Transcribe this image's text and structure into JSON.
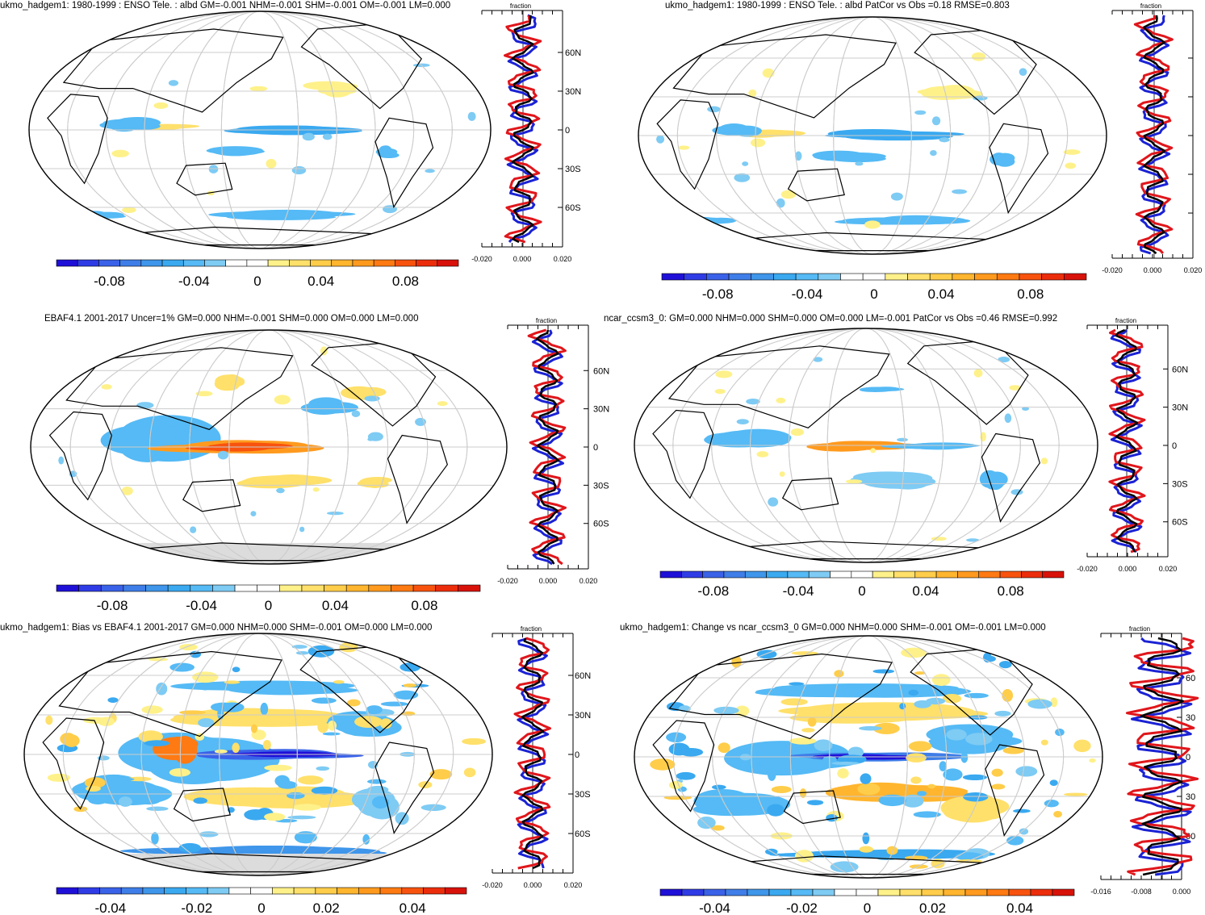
{
  "panels": [
    {
      "id": "top-left",
      "title": "ukmo_hadgem1: 1980-1999 : ENSO Tele. : albd GM=-0.001 NHM=-0.001 SHM=-0.001 OM=-0.001 LM=0.000",
      "has_missing_gray": false,
      "profile_lat_labels": [
        "60N",
        "30N",
        "0",
        "30S",
        "60S"
      ],
      "profile_x_labels": [
        "-0.020",
        "0.000",
        "0.020"
      ],
      "profile_header": "fraction",
      "colorbar_labels": [
        "-0.08",
        "-0.04",
        "0",
        "0.04",
        "0.08"
      ],
      "anomaly_pattern": "weak"
    },
    {
      "id": "top-right",
      "title": "ukmo_hadgem1: 1980-1999 : ENSO Tele. : albd PatCor vs Obs =0.18 RMSE=0.803",
      "has_missing_gray": false,
      "profile_lat_labels": [],
      "profile_x_labels": [
        "-0.020",
        "0.000",
        "0.020"
      ],
      "profile_header": "fraction",
      "colorbar_labels": [
        "-0.08",
        "-0.04",
        "0",
        "0.04",
        "0.08"
      ],
      "anomaly_pattern": "weak"
    },
    {
      "id": "middle-left",
      "title": "EBAF4.1 2001-2017 Uncer=1% GM=0.000 NHM=-0.001 SHM=0.000 OM=0.000 LM=0.000",
      "has_missing_gray": true,
      "profile_lat_labels": [
        "60N",
        "30N",
        "0",
        "30S",
        "60S"
      ],
      "profile_x_labels": [
        "-0.020",
        "0.000",
        "0.020"
      ],
      "profile_header": "fraction",
      "colorbar_labels": [
        "-0.08",
        "-0.04",
        "0",
        "0.04",
        "0.08"
      ],
      "anomaly_pattern": "obs"
    },
    {
      "id": "middle-right",
      "title": "ncar_ccsm3_0: GM=0.000 NHM=0.000 SHM=0.000 OM=0.000 LM=-0.001 PatCor vs Obs =0.46 RMSE=0.992",
      "has_missing_gray": false,
      "profile_lat_labels": [
        "60N",
        "30N",
        "0",
        "30S",
        "60S"
      ],
      "profile_x_labels": [
        "-0.020",
        "0.000",
        "0.020"
      ],
      "profile_header": "fraction",
      "colorbar_labels": [
        "-0.08",
        "-0.04",
        "0",
        "0.04",
        "0.08"
      ],
      "anomaly_pattern": "ccsm"
    },
    {
      "id": "bottom-left",
      "title": "ukmo_hadgem1: Bias vs EBAF4.1 2001-2017 GM=0.000 NHM=0.000 SHM=-0.001 OM=0.000 LM=0.000",
      "has_missing_gray": true,
      "profile_lat_labels": [
        "60N",
        "30N",
        "0",
        "30S",
        "60S"
      ],
      "profile_x_labels": [
        "-0.020",
        "0.000",
        "0.020"
      ],
      "profile_header": "fraction",
      "colorbar_labels": [
        "-0.04",
        "-0.02",
        "0",
        "0.02",
        "0.04"
      ],
      "anomaly_pattern": "bias"
    },
    {
      "id": "bottom-right",
      "title": "ukmo_hadgem1: Change vs ncar_ccsm3_0 GM=0.000 NHM=0.000 SHM=-0.001 OM=-0.001 LM=0.000",
      "has_missing_gray": false,
      "profile_lat_labels": [
        "60",
        "30",
        "0",
        "30",
        "60"
      ],
      "profile_x_labels": [
        "-0.016",
        "-0.008",
        "0.000"
      ],
      "profile_header": "fraction",
      "colorbar_labels": [
        "-0.04",
        "-0.02",
        "0",
        "0.02",
        "0.04"
      ],
      "anomaly_pattern": "change"
    }
  ],
  "colors": {
    "colorbar": [
      "#1f10d8",
      "#2f3ce6",
      "#3a62e8",
      "#3f7ee8",
      "#3f96ea",
      "#3aa9f0",
      "#55baf5",
      "#7ecbf4",
      "#ffffff",
      "#ffffff",
      "#fff18a",
      "#ffe06a",
      "#ffcd4a",
      "#ffb52e",
      "#ff9a1e",
      "#ff7a12",
      "#f8530e",
      "#ec2d0c",
      "#d8120a"
    ],
    "model_line": "#e0161b",
    "obs_line": "#1a22d4",
    "mean_line": "#000000",
    "grid": "#cccccc",
    "missing": "#dcdcdc"
  },
  "chart_data": [
    {
      "type": "heatmap",
      "title": "ukmo_hadgem1: 1980-1999 : ENSO Tele. : albd GM=-0.001 NHM=-0.001 SHM=-0.001 OM=-0.001 LM=0.000",
      "colorbar_ticks": [
        -0.08,
        -0.04,
        0,
        0.04,
        0.08
      ],
      "profile_xlim": [
        -0.02,
        0.02
      ],
      "profile_ylabels": [
        "60N",
        "30N",
        "0",
        "30S",
        "60S"
      ]
    },
    {
      "type": "heatmap",
      "title": "ukmo_hadgem1: 1980-1999 : ENSO Tele. : albd PatCor vs Obs =0.18 RMSE=0.803",
      "colorbar_ticks": [
        -0.08,
        -0.04,
        0,
        0.04,
        0.08
      ],
      "profile_xlim": [
        -0.02,
        0.02
      ]
    },
    {
      "type": "heatmap",
      "title": "EBAF4.1 2001-2017 Uncer=1% GM=0.000 NHM=-0.001 SHM=0.000 OM=0.000 LM=0.000",
      "colorbar_ticks": [
        -0.08,
        -0.04,
        0,
        0.04,
        0.08
      ],
      "profile_xlim": [
        -0.02,
        0.02
      ],
      "profile_ylabels": [
        "60N",
        "30N",
        "0",
        "30S",
        "60S"
      ]
    },
    {
      "type": "heatmap",
      "title": "ncar_ccsm3_0: GM=0.000 NHM=0.000 SHM=0.000 OM=0.000 LM=-0.001 PatCor vs Obs =0.46 RMSE=0.992",
      "colorbar_ticks": [
        -0.08,
        -0.04,
        0,
        0.04,
        0.08
      ],
      "profile_xlim": [
        -0.02,
        0.02
      ],
      "profile_ylabels": [
        "60N",
        "30N",
        "0",
        "30S",
        "60S"
      ]
    },
    {
      "type": "heatmap",
      "title": "ukmo_hadgem1: Bias vs EBAF4.1 2001-2017 GM=0.000 NHM=0.000 SHM=-0.001 OM=0.000 LM=0.000",
      "colorbar_ticks": [
        -0.04,
        -0.02,
        0,
        0.02,
        0.04
      ],
      "profile_xlim": [
        -0.02,
        0.02
      ],
      "profile_ylabels": [
        "60N",
        "30N",
        "0",
        "30S",
        "60S"
      ]
    },
    {
      "type": "heatmap",
      "title": "ukmo_hadgem1: Change vs ncar_ccsm3_0 GM=0.000 NHM=0.000 SHM=-0.001 OM=-0.001 LM=0.000",
      "colorbar_ticks": [
        -0.04,
        -0.02,
        0,
        0.02,
        0.04
      ],
      "profile_xlim": [
        -0.016,
        0.0
      ],
      "profile_ylabels": [
        "60",
        "30",
        "0",
        "30",
        "60"
      ]
    }
  ]
}
